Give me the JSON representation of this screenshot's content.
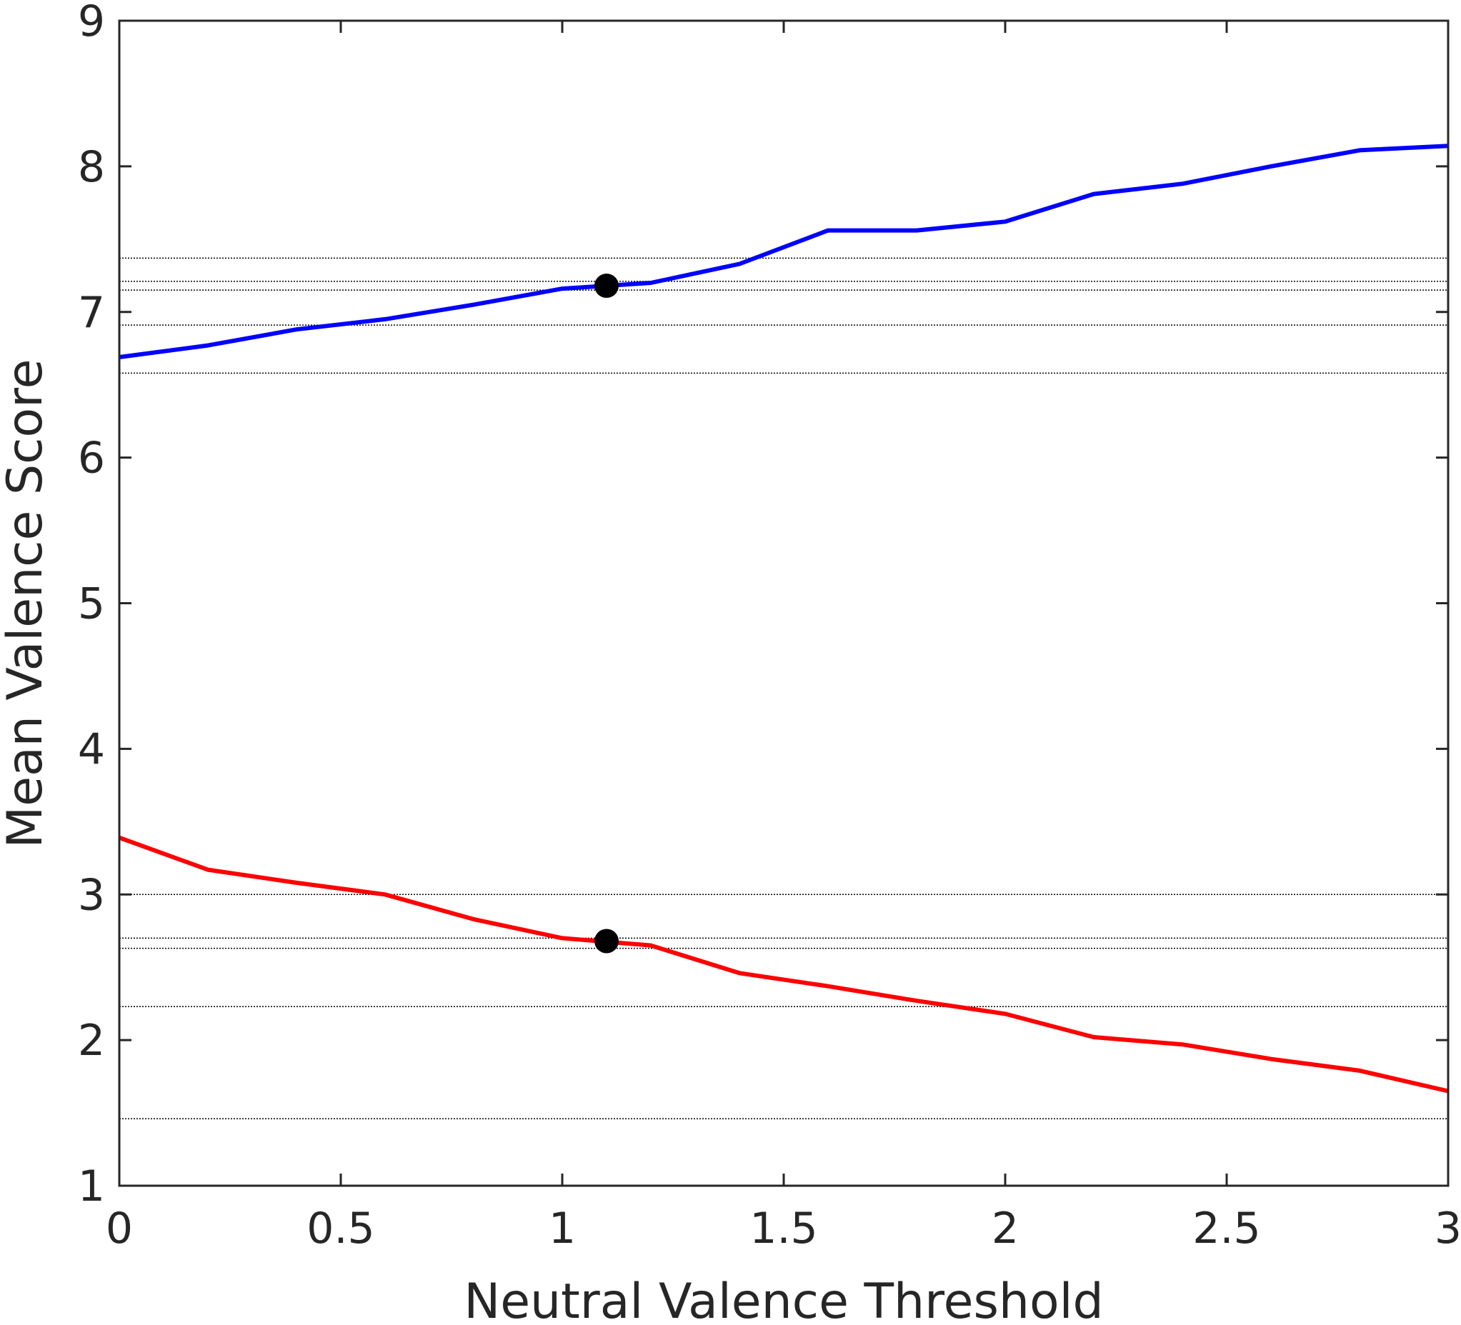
{
  "chart_data": {
    "type": "line",
    "title": "",
    "xlabel": "Neutral Valence Threshold",
    "ylabel": "Mean Valence Score",
    "xlim": [
      0,
      3
    ],
    "ylim": [
      1,
      9
    ],
    "x_ticks": [
      {
        "value": 0,
        "label": "0"
      },
      {
        "value": 0.5,
        "label": "0.5"
      },
      {
        "value": 1,
        "label": "1"
      },
      {
        "value": 1.5,
        "label": "1.5"
      },
      {
        "value": 2,
        "label": "2"
      },
      {
        "value": 2.5,
        "label": "2.5"
      },
      {
        "value": 3,
        "label": "3"
      }
    ],
    "y_ticks": [
      {
        "value": 1,
        "label": "1"
      },
      {
        "value": 2,
        "label": "2"
      },
      {
        "value": 3,
        "label": "3"
      },
      {
        "value": 4,
        "label": "4"
      },
      {
        "value": 5,
        "label": "5"
      },
      {
        "value": 6,
        "label": "6"
      },
      {
        "value": 7,
        "label": "7"
      },
      {
        "value": 8,
        "label": "8"
      },
      {
        "value": 9,
        "label": "9"
      }
    ],
    "grid": false,
    "reference_lines": {
      "orientation": "horizontal",
      "style": "dotted",
      "color": "#000000",
      "values": [
        7.37,
        7.21,
        7.15,
        6.91,
        6.58,
        3.0,
        2.7,
        2.63,
        2.23,
        1.46
      ]
    },
    "series": [
      {
        "color": "#0000ff",
        "x": [
          0,
          0.2,
          0.4,
          0.6,
          0.8,
          1.0,
          1.2,
          1.4,
          1.6,
          1.8,
          2.0,
          2.2,
          2.4,
          2.6,
          2.8,
          3.0
        ],
        "y": [
          6.69,
          6.77,
          6.88,
          6.95,
          7.05,
          7.16,
          7.2,
          7.33,
          7.56,
          7.56,
          7.62,
          7.81,
          7.88,
          8.0,
          8.11,
          8.14
        ]
      },
      {
        "color": "#ff0000",
        "x": [
          0,
          0.2,
          0.4,
          0.6,
          0.8,
          1.0,
          1.2,
          1.4,
          1.6,
          1.8,
          2.0,
          2.2,
          2.4,
          2.6,
          2.8,
          3.0
        ],
        "y": [
          3.39,
          3.17,
          3.08,
          3.0,
          2.83,
          2.7,
          2.65,
          2.46,
          2.37,
          2.27,
          2.18,
          2.02,
          1.97,
          1.87,
          1.79,
          1.65
        ]
      }
    ],
    "markers": [
      {
        "x": 1.1,
        "y": 7.18,
        "color": "#000000"
      },
      {
        "x": 1.1,
        "y": 2.68,
        "color": "#000000"
      }
    ]
  }
}
